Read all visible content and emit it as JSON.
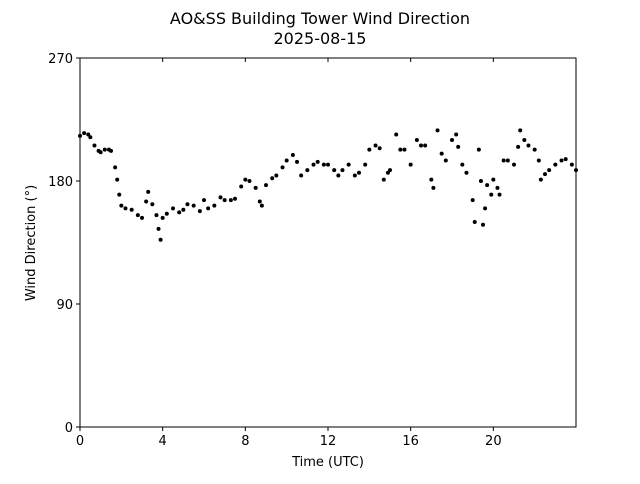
{
  "chart_data": {
    "type": "scatter",
    "title": "AO&SS Building Tower Wind Direction",
    "subtitle": "2025-08-15",
    "xlabel": "Time (UTC)",
    "ylabel": "Wind Direction (°)",
    "xlim": [
      0,
      24
    ],
    "ylim": [
      0,
      270
    ],
    "xticks": [
      0,
      4,
      8,
      12,
      16,
      20
    ],
    "xtick_labels": [
      "0",
      "4",
      "8",
      "12",
      "16",
      "20"
    ],
    "yticks": [
      0,
      90,
      180,
      270
    ],
    "ytick_labels": [
      "0",
      "90",
      "180",
      "270"
    ],
    "grid": false,
    "marker_color": "#000000",
    "x": [
      0,
      0.2,
      0.4,
      0.5,
      0.7,
      0.9,
      1.0,
      1.2,
      1.4,
      1.5,
      1.7,
      1.8,
      1.9,
      2.0,
      2.2,
      2.5,
      2.8,
      3.0,
      3.2,
      3.3,
      3.5,
      3.7,
      3.8,
      3.9,
      4.0,
      4.2,
      4.5,
      4.8,
      5.0,
      5.2,
      5.5,
      5.8,
      6.0,
      6.2,
      6.5,
      6.8,
      7.0,
      7.3,
      7.5,
      7.8,
      8.0,
      8.2,
      8.5,
      8.7,
      8.8,
      9.0,
      9.3,
      9.5,
      9.8,
      10.0,
      10.3,
      10.5,
      10.7,
      11.0,
      11.3,
      11.5,
      11.8,
      12.0,
      12.3,
      12.5,
      12.7,
      13.0,
      13.3,
      13.5,
      13.8,
      14.0,
      14.3,
      14.5,
      14.7,
      14.9,
      15.0,
      15.3,
      15.5,
      15.7,
      16.0,
      16.3,
      16.5,
      16.7,
      17.0,
      17.1,
      17.3,
      17.5,
      17.7,
      18.0,
      18.2,
      18.3,
      18.5,
      18.7,
      19.0,
      19.1,
      19.3,
      19.4,
      19.5,
      19.6,
      19.7,
      19.9,
      20.0,
      20.2,
      20.3,
      20.5,
      20.7,
      21.0,
      21.2,
      21.3,
      21.5,
      21.7,
      22.0,
      22.2,
      22.3,
      22.5,
      22.7,
      23.0,
      23.3,
      23.5,
      23.8,
      24.0
    ],
    "y": [
      213,
      215,
      214,
      212,
      206,
      202,
      201,
      203,
      203,
      202,
      190,
      181,
      170,
      162,
      160,
      159,
      155,
      153,
      165,
      172,
      163,
      155,
      145,
      137,
      153,
      156,
      160,
      157,
      159,
      163,
      162,
      158,
      166,
      160,
      162,
      168,
      166,
      166,
      167,
      176,
      181,
      180,
      175,
      165,
      162,
      177,
      182,
      184,
      190,
      195,
      199,
      194,
      184,
      188,
      192,
      194,
      192,
      192,
      188,
      184,
      188,
      192,
      184,
      186,
      192,
      203,
      206,
      204,
      181,
      186,
      188,
      214,
      203,
      203,
      192,
      210,
      206,
      206,
      181,
      175,
      217,
      200,
      195,
      210,
      214,
      205,
      192,
      186,
      166,
      150,
      203,
      180,
      148,
      160,
      177,
      170,
      181,
      175,
      170,
      195,
      195,
      192,
      205,
      217,
      210,
      206,
      203,
      195,
      181,
      185,
      188,
      192,
      195,
      196,
      192,
      188
    ]
  }
}
